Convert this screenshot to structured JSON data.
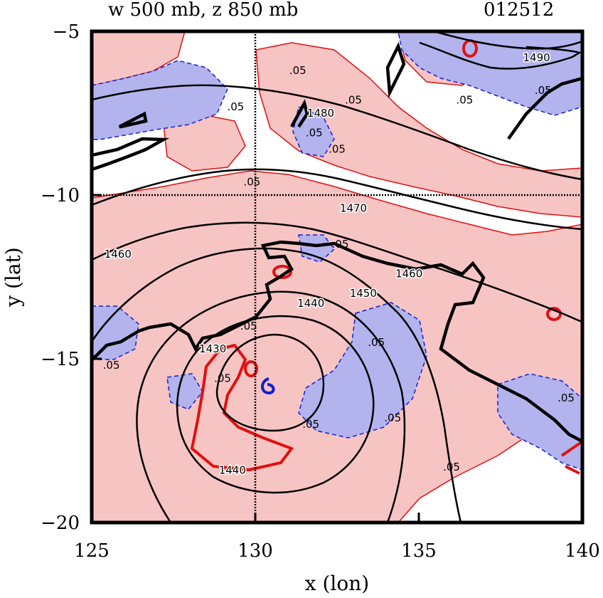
{
  "chart_data": {
    "type": "contour",
    "title": "w 500 mb, z 850 mb",
    "case_id": "012512",
    "xlabel": "x (lon)",
    "ylabel": "y (lat)",
    "xlim": [
      125,
      140
    ],
    "ylim": [
      -20,
      -5
    ],
    "x_ticks": [
      125,
      130,
      135,
      140
    ],
    "y_ticks": [
      -5,
      -10,
      -15,
      -20
    ],
    "x_tick_labels": [
      "125",
      "130",
      "135",
      "140"
    ],
    "y_tick_labels": [
      "−5",
      "−10",
      "−15",
      "−20"
    ],
    "crosshair": {
      "lon": 130,
      "lat": -10
    },
    "colors": {
      "positive_fill": "#f7c4c4",
      "negative_fill": "#b3b3ee",
      "positive_contour": "#e01010",
      "negative_contour": "#1020d0",
      "height_contour": "#000000"
    },
    "height_contour_labels": [
      {
        "text": "1490",
        "lon": 138.6,
        "lat": -5.8
      },
      {
        "text": "1480",
        "lon": 132.0,
        "lat": -7.5
      },
      {
        "text": "1470",
        "lon": 133.0,
        "lat": -10.4
      },
      {
        "text": "1460",
        "lon": 125.8,
        "lat": -11.8
      },
      {
        "text": "1460",
        "lon": 134.7,
        "lat": -12.4
      },
      {
        "text": "1450",
        "lon": 133.3,
        "lat": -13.0
      },
      {
        "text": "1440",
        "lon": 131.7,
        "lat": -13.3
      },
      {
        "text": "1430",
        "lon": 128.7,
        "lat": -14.7
      },
      {
        "text": "1440",
        "lon": 129.3,
        "lat": -18.4
      }
    ],
    "w_contour_labels": [
      {
        "text": ".05",
        "lon": 131.3,
        "lat": -6.2
      },
      {
        "text": ".05",
        "lon": 129.4,
        "lat": -7.3
      },
      {
        "text": ".05",
        "lon": 131.8,
        "lat": -8.1
      },
      {
        "text": ".05",
        "lon": 132.5,
        "lat": -8.6
      },
      {
        "text": ".05",
        "lon": 133.0,
        "lat": -7.1
      },
      {
        "text": ".05",
        "lon": 136.4,
        "lat": -7.1
      },
      {
        "text": ".05",
        "lon": 129.9,
        "lat": -9.6
      },
      {
        "text": ".05",
        "lon": 132.6,
        "lat": -11.5
      },
      {
        "text": ".05",
        "lon": 133.7,
        "lat": -14.5
      },
      {
        "text": ".05",
        "lon": 129.8,
        "lat": -14.0
      },
      {
        "text": ".05",
        "lon": 125.6,
        "lat": -15.2
      },
      {
        "text": ".05",
        "lon": 129.0,
        "lat": -15.6
      },
      {
        "text": ".05",
        "lon": 134.2,
        "lat": -16.8
      },
      {
        "text": ".05",
        "lon": 131.7,
        "lat": -17.0
      },
      {
        "text": ".05",
        "lon": 136.0,
        "lat": -18.3
      },
      {
        "text": ".05",
        "lon": 139.5,
        "lat": -16.2
      },
      {
        "text": ".05",
        "lon": 138.8,
        "lat": -6.8
      }
    ]
  }
}
